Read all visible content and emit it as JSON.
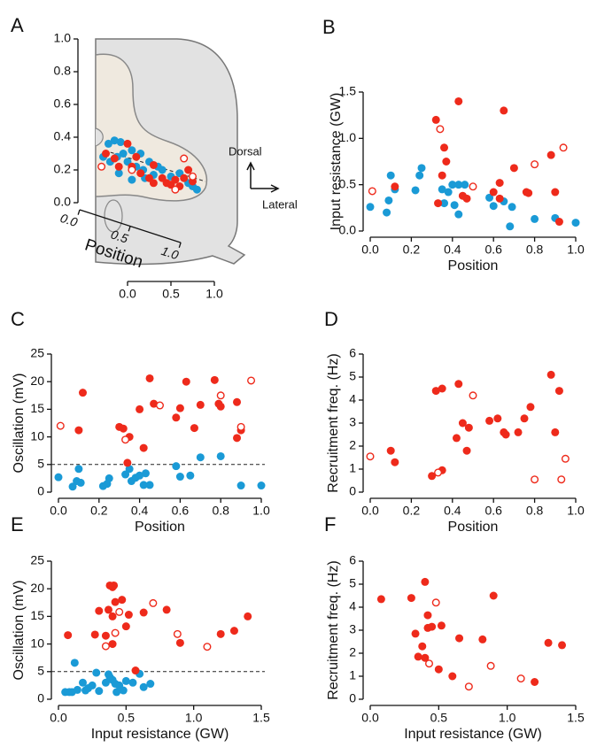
{
  "chart_data": [
    {
      "type": "scatter",
      "panel": "A",
      "xlim": [
        -0.4,
        1.3
      ],
      "ylim": [
        0,
        1
      ],
      "xticks": [
        {
          "value": 0,
          "label": "0.0"
        },
        0.5,
        {
          "value": 1,
          "label": "1.0"
        }
      ],
      "yticks": [
        {
          "value": 0,
          "label": "0.0"
        },
        0.2,
        0.4,
        0.6,
        0.8,
        {
          "value": 1,
          "label": "1.0"
        }
      ],
      "position_axis": {
        "label": "Position",
        "ticks": [
          {
            "value": 0,
            "label": "0.0"
          },
          0.5,
          {
            "value": 1,
            "label": "1.0"
          }
        ]
      },
      "annotations": [
        "Dorsal",
        "Lateral"
      ],
      "series": [
        {
          "color": "#1a9ad6",
          "marker": "filled",
          "x": [
            -0.28,
            -0.22,
            -0.15,
            -0.08,
            -0.2,
            -0.12,
            -0.05,
            0.0,
            0.05,
            0.1,
            0.18,
            0.2,
            0.25,
            0.3,
            0.35,
            0.4,
            0.5,
            0.6,
            0.7,
            0.75,
            0.8,
            -0.1,
            0.05,
            0.15
          ],
          "values": [
            0.28,
            0.36,
            0.38,
            0.37,
            0.25,
            0.28,
            0.3,
            0.25,
            0.32,
            0.22,
            0.2,
            0.15,
            0.25,
            0.17,
            0.22,
            0.2,
            0.16,
            0.18,
            0.12,
            0.1,
            0.08,
            0.18,
            0.14,
            0.3
          ]
        },
        {
          "color": "#ee2a1b",
          "marker": "filled",
          "x": [
            -0.25,
            -0.15,
            -0.1,
            0.0,
            0.05,
            0.1,
            0.15,
            0.25,
            0.3,
            0.4,
            0.45,
            0.5,
            0.55,
            0.6,
            0.65,
            0.7,
            0.75,
            0.3
          ],
          "values": [
            0.3,
            0.27,
            0.22,
            0.36,
            0.22,
            0.28,
            0.18,
            0.15,
            0.12,
            0.15,
            0.12,
            0.11,
            0.14,
            0.1,
            0.15,
            0.2,
            0.13,
            0.23
          ]
        },
        {
          "color": "#ee2a1b",
          "marker": "open",
          "x": [
            -0.3,
            0.05,
            0.65,
            0.75,
            0.55
          ],
          "values": [
            0.22,
            0.2,
            0.27,
            0.16,
            0.08
          ]
        }
      ]
    },
    {
      "type": "scatter",
      "panel": "B",
      "xlabel": "Position",
      "ylabel": "Input resistance (GW)",
      "xlim": [
        0,
        1
      ],
      "ylim": [
        0,
        1.5
      ],
      "xticks": [
        {
          "value": 0,
          "label": "0.0"
        },
        0.2,
        0.4,
        0.6,
        0.8,
        {
          "value": 1,
          "label": "1.0"
        }
      ],
      "yticks": [
        {
          "value": 0,
          "label": "0.0"
        },
        0.5,
        {
          "value": 1,
          "label": "1.0"
        },
        1.5
      ],
      "series": [
        {
          "color": "#1a9ad6",
          "marker": "filled",
          "x": [
            0.0,
            0.08,
            0.09,
            0.1,
            0.12,
            0.22,
            0.24,
            0.25,
            0.35,
            0.36,
            0.38,
            0.4,
            0.41,
            0.43,
            0.43,
            0.46,
            0.58,
            0.6,
            0.65,
            0.68,
            0.69,
            0.8,
            0.9,
            1.0
          ],
          "values": [
            0.26,
            0.2,
            0.33,
            0.6,
            0.45,
            0.44,
            0.6,
            0.68,
            0.45,
            0.3,
            0.42,
            0.5,
            0.28,
            0.5,
            0.18,
            0.5,
            0.36,
            0.27,
            0.32,
            0.05,
            0.26,
            0.13,
            0.14,
            0.09
          ]
        },
        {
          "color": "#ee2a1b",
          "marker": "filled",
          "x": [
            0.12,
            0.32,
            0.33,
            0.35,
            0.36,
            0.37,
            0.43,
            0.45,
            0.47,
            0.6,
            0.63,
            0.65,
            0.7,
            0.76,
            0.77,
            0.88,
            0.9,
            0.92,
            0.63
          ],
          "values": [
            0.48,
            1.2,
            0.3,
            0.6,
            0.9,
            0.75,
            1.4,
            0.38,
            0.35,
            0.42,
            0.52,
            1.3,
            0.68,
            0.42,
            0.41,
            0.82,
            0.42,
            0.1,
            0.35
          ]
        },
        {
          "color": "#ee2a1b",
          "marker": "open",
          "x": [
            0.01,
            0.34,
            0.5,
            0.8,
            0.94
          ],
          "values": [
            0.43,
            1.1,
            0.48,
            0.72,
            0.9
          ]
        }
      ]
    },
    {
      "type": "scatter",
      "panel": "C",
      "xlabel": "Position",
      "ylabel": "Oscillation (mV)",
      "xlim": [
        0,
        1
      ],
      "ylim": [
        0,
        25
      ],
      "reference_line": 5,
      "xticks": [
        {
          "value": 0,
          "label": "0.0"
        },
        0.2,
        0.4,
        0.6,
        0.8,
        {
          "value": 1,
          "label": "1.0"
        }
      ],
      "yticks": [
        0,
        5,
        10,
        15,
        20,
        25
      ],
      "series": [
        {
          "color": "#1a9ad6",
          "marker": "filled",
          "x": [
            0.0,
            0.07,
            0.09,
            0.1,
            0.11,
            0.22,
            0.24,
            0.25,
            0.33,
            0.35,
            0.36,
            0.38,
            0.4,
            0.42,
            0.43,
            0.45,
            0.58,
            0.6,
            0.65,
            0.7,
            0.8,
            0.9,
            1.0
          ],
          "values": [
            2.7,
            1,
            2,
            4.2,
            1.7,
            1.1,
            1.5,
            2.5,
            3.2,
            4.2,
            2,
            2.6,
            3,
            1.3,
            3.4,
            1.3,
            4.7,
            2.8,
            3,
            6.3,
            6.5,
            1.2,
            1.2
          ]
        },
        {
          "color": "#ee2a1b",
          "marker": "filled",
          "x": [
            0.1,
            0.12,
            0.3,
            0.32,
            0.34,
            0.35,
            0.4,
            0.42,
            0.45,
            0.47,
            0.58,
            0.6,
            0.63,
            0.67,
            0.7,
            0.77,
            0.79,
            0.8,
            0.88,
            0.88,
            0.9
          ],
          "values": [
            11.2,
            18,
            11.8,
            11.5,
            5.3,
            10,
            15,
            8,
            20.6,
            16,
            13.5,
            15.2,
            20,
            11.6,
            15.8,
            20.3,
            16,
            15.5,
            16.3,
            9.8,
            11.2
          ]
        },
        {
          "color": "#ee2a1b",
          "marker": "open",
          "x": [
            0.01,
            0.33,
            0.5,
            0.8,
            0.9,
            0.95
          ],
          "values": [
            12,
            9.5,
            15.7,
            17.5,
            11.8,
            20.2
          ]
        }
      ]
    },
    {
      "type": "scatter",
      "panel": "D",
      "xlabel": "Position",
      "ylabel": "Recruitment freq. (Hz)",
      "xlim": [
        0,
        1
      ],
      "ylim": [
        0,
        6
      ],
      "xticks": [
        {
          "value": 0,
          "label": "0.0"
        },
        0.2,
        0.4,
        0.6,
        0.8,
        {
          "value": 1,
          "label": "1.0"
        }
      ],
      "yticks": [
        0,
        1,
        2,
        3,
        4,
        5,
        6
      ],
      "series": [
        {
          "color": "#ee2a1b",
          "marker": "filled",
          "x": [
            0.1,
            0.12,
            0.3,
            0.32,
            0.35,
            0.35,
            0.42,
            0.43,
            0.45,
            0.47,
            0.48,
            0.58,
            0.62,
            0.65,
            0.66,
            0.72,
            0.75,
            0.78,
            0.88,
            0.9,
            0.92
          ],
          "values": [
            1.8,
            1.3,
            0.7,
            4.4,
            4.5,
            0.95,
            2.35,
            4.7,
            3,
            1.8,
            2.8,
            3.1,
            3.2,
            2.6,
            2.5,
            2.6,
            3.2,
            3.7,
            5.1,
            2.6,
            4.4
          ]
        },
        {
          "color": "#ee2a1b",
          "marker": "open",
          "x": [
            0.0,
            0.33,
            0.5,
            0.8,
            0.93,
            0.95
          ],
          "values": [
            1.55,
            0.85,
            4.2,
            0.55,
            0.55,
            1.45
          ]
        }
      ]
    },
    {
      "type": "scatter",
      "panel": "E",
      "xlabel": "Input resistance (GW)",
      "ylabel": "Oscillation (mV)",
      "xlim": [
        0,
        1.5
      ],
      "ylim": [
        0,
        25
      ],
      "reference_line": 5,
      "xticks": [
        {
          "value": 0,
          "label": "0.0"
        },
        0.5,
        {
          "value": 1,
          "label": "1.0"
        },
        1.5
      ],
      "yticks": [
        0,
        5,
        10,
        15,
        20,
        25
      ],
      "series": [
        {
          "color": "#1a9ad6",
          "marker": "filled",
          "x": [
            0.05,
            0.08,
            0.1,
            0.12,
            0.14,
            0.18,
            0.2,
            0.22,
            0.25,
            0.28,
            0.3,
            0.35,
            0.37,
            0.38,
            0.4,
            0.42,
            0.43,
            0.45,
            0.48,
            0.5,
            0.55,
            0.6,
            0.63,
            0.68
          ],
          "values": [
            1.3,
            1.3,
            1.3,
            6.6,
            1.7,
            3,
            1.6,
            2,
            2.5,
            4.8,
            1.5,
            3,
            4.5,
            4,
            3.5,
            2.8,
            1.3,
            2.5,
            1.6,
            3.3,
            3,
            4.6,
            2.2,
            2.8
          ]
        },
        {
          "color": "#ee2a1b",
          "marker": "filled",
          "x": [
            0.07,
            0.27,
            0.3,
            0.35,
            0.37,
            0.38,
            0.4,
            0.41,
            0.4,
            0.4,
            0.42,
            0.47,
            0.5,
            0.52,
            0.57,
            0.63,
            0.8,
            0.9,
            1.2,
            1.3,
            1.4
          ],
          "values": [
            11.6,
            11.7,
            16,
            11.5,
            16.2,
            20.6,
            20.3,
            20.6,
            15,
            10,
            17.6,
            18,
            13.2,
            15.3,
            5.2,
            15.7,
            16.2,
            10.2,
            11.8,
            12.4,
            15
          ]
        },
        {
          "color": "#ee2a1b",
          "marker": "open",
          "x": [
            0.35,
            0.42,
            0.45,
            0.7,
            0.88,
            1.1
          ],
          "values": [
            9.6,
            12,
            15.8,
            17.4,
            11.8,
            9.5
          ]
        }
      ]
    },
    {
      "type": "scatter",
      "panel": "F",
      "xlabel": "Input resistance (GW)",
      "ylabel": "Recruitment freq. (Hz)",
      "xlim": [
        0,
        1.5
      ],
      "ylim": [
        0,
        6
      ],
      "xticks": [
        {
          "value": 0,
          "label": "0.0"
        },
        0.5,
        {
          "value": 1,
          "label": "1.0"
        },
        1.5
      ],
      "yticks": [
        0,
        1,
        2,
        3,
        4,
        5,
        6
      ],
      "series": [
        {
          "color": "#ee2a1b",
          "marker": "filled",
          "x": [
            0.08,
            0.3,
            0.33,
            0.35,
            0.38,
            0.4,
            0.4,
            0.42,
            0.42,
            0.45,
            0.5,
            0.52,
            0.6,
            0.65,
            0.82,
            0.9,
            1.2,
            1.3,
            1.4
          ],
          "values": [
            4.35,
            4.4,
            2.85,
            1.85,
            2.3,
            1.8,
            5.1,
            3.65,
            3.1,
            3.15,
            1.3,
            3.2,
            1,
            2.65,
            2.6,
            4.5,
            0.75,
            2.45,
            2.35
          ]
        },
        {
          "color": "#ee2a1b",
          "marker": "open",
          "x": [
            0.43,
            0.48,
            0.72,
            0.88,
            1.1
          ],
          "values": [
            1.55,
            4.2,
            0.55,
            1.45,
            0.9
          ]
        }
      ]
    }
  ]
}
